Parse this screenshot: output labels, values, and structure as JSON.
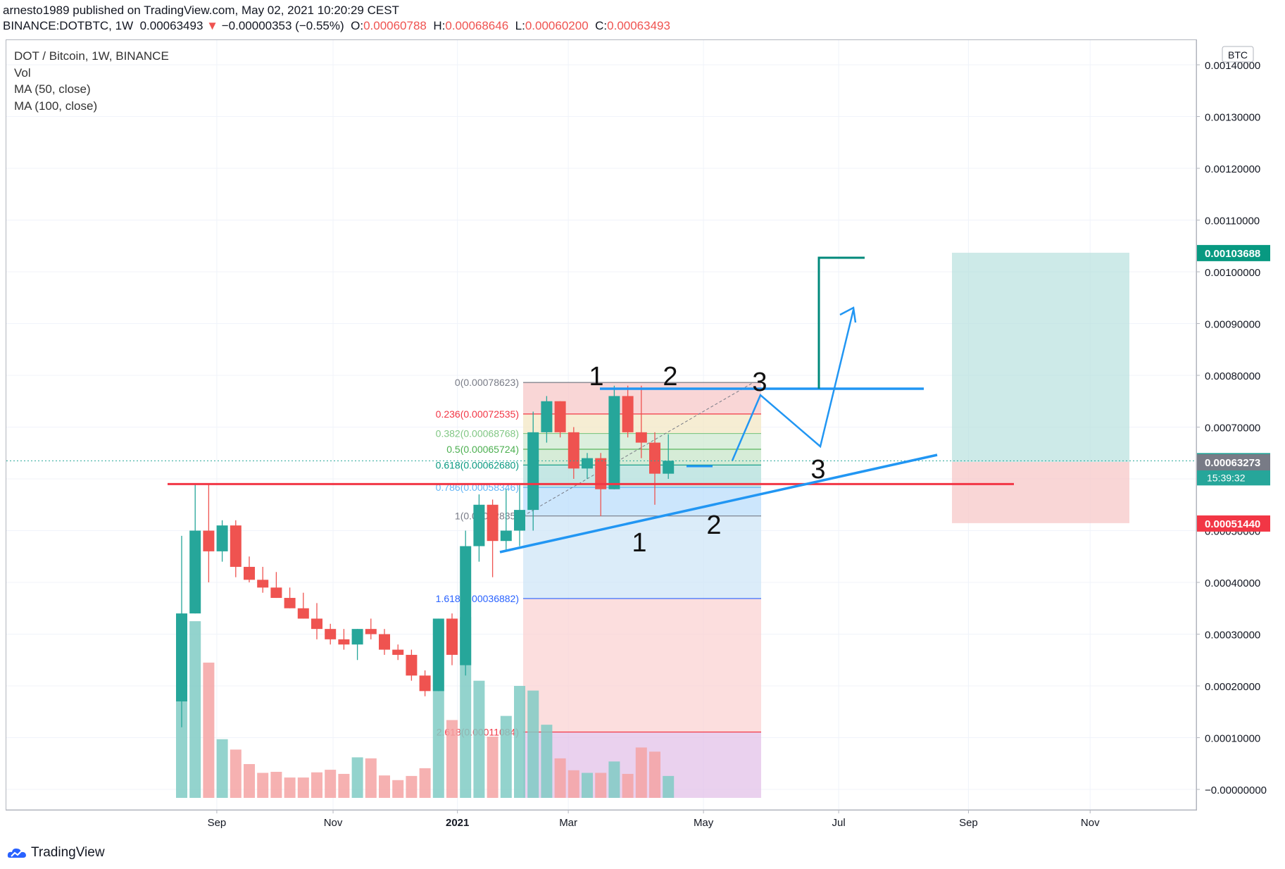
{
  "header": {
    "line1": "arnesto1989 published on TradingView.com, May 02, 2021 10:20:29 CEST",
    "symbol": "BINANCE:DOTBTC, 1W",
    "price": "0.00063493",
    "change": "−0.00000353 (−0.55%)",
    "ohlc": {
      "o_label": "O:",
      "o": "0.00060788",
      "h_label": "H:",
      "h": "0.00068646",
      "l_label": "L:",
      "l": "0.00060200",
      "c_label": "C:",
      "c": "0.00063493"
    }
  },
  "legend": {
    "title": "DOT / Bitcoin, 1W, BINANCE",
    "vol": "Vol",
    "ma50": "MA (50, close)",
    "ma100": "MA (100, close)"
  },
  "currency": "BTC",
  "brand": "TradingView",
  "colors": {
    "up": "#26a69a",
    "down": "#ef5350",
    "drawing_blue": "#2196f3",
    "hline_red": "#f23645",
    "target_teal": "#009688"
  },
  "chart_data": {
    "type": "candlestick",
    "y_axis": {
      "min": -2e-05,
      "max": 0.00143,
      "ticks": [
        0,
        0.0001,
        0.0002,
        0.0003,
        0.0004,
        0.0005,
        0.0006,
        0.0007,
        0.0008,
        0.0009,
        0.001,
        0.0011,
        0.0012,
        0.0013,
        0.0014
      ],
      "tick_labels": [
        "−0.00000000",
        "0.00010000",
        "0.00020000",
        "0.00030000",
        "0.00040000",
        "0.00050000",
        "0.00060000",
        "0.00070000",
        "0.00080000",
        "0.00090000",
        "0.00100000",
        "0.00110000",
        "0.00120000",
        "0.00130000",
        "0.00140000"
      ]
    },
    "x_axis": {
      "labels": [
        "Sep",
        "Nov",
        "2021",
        "Mar",
        "May",
        "Jul",
        "Sep",
        "Nov"
      ],
      "label_weeks": [
        2.6,
        11.2,
        20.4,
        28.6,
        38.6,
        48.6,
        58.2,
        67.2
      ]
    },
    "candles": [
      {
        "o": 0.00017,
        "h": 0.00049,
        "l": 0.00012,
        "c": 0.00034
      },
      {
        "o": 0.00034,
        "h": 0.00059,
        "l": 0.00034,
        "c": 0.0005
      },
      {
        "o": 0.0005,
        "h": 0.00059,
        "l": 0.0004,
        "c": 0.00046
      },
      {
        "o": 0.00046,
        "h": 0.00052,
        "l": 0.00044,
        "c": 0.00051
      },
      {
        "o": 0.00051,
        "h": 0.00052,
        "l": 0.00041,
        "c": 0.00043
      },
      {
        "o": 0.00043,
        "h": 0.00045,
        "l": 0.0004,
        "c": 0.000405
      },
      {
        "o": 0.000405,
        "h": 0.00043,
        "l": 0.00038,
        "c": 0.00039
      },
      {
        "o": 0.00039,
        "h": 0.00042,
        "l": 0.00037,
        "c": 0.00037
      },
      {
        "o": 0.00037,
        "h": 0.00039,
        "l": 0.00035,
        "c": 0.00035
      },
      {
        "o": 0.00035,
        "h": 0.00038,
        "l": 0.00033,
        "c": 0.00033
      },
      {
        "o": 0.00033,
        "h": 0.00036,
        "l": 0.00029,
        "c": 0.00031
      },
      {
        "o": 0.00031,
        "h": 0.00032,
        "l": 0.00028,
        "c": 0.00029
      },
      {
        "o": 0.00029,
        "h": 0.00031,
        "l": 0.00027,
        "c": 0.00028
      },
      {
        "o": 0.00028,
        "h": 0.00031,
        "l": 0.00025,
        "c": 0.00031
      },
      {
        "o": 0.00031,
        "h": 0.00033,
        "l": 0.00029,
        "c": 0.0003
      },
      {
        "o": 0.0003,
        "h": 0.00031,
        "l": 0.00026,
        "c": 0.00027
      },
      {
        "o": 0.00027,
        "h": 0.00028,
        "l": 0.00025,
        "c": 0.00026
      },
      {
        "o": 0.00026,
        "h": 0.00027,
        "l": 0.00021,
        "c": 0.00022
      },
      {
        "o": 0.00022,
        "h": 0.00023,
        "l": 0.00018,
        "c": 0.00019
      },
      {
        "o": 0.00019,
        "h": 0.00033,
        "l": 0.00019,
        "c": 0.00033
      },
      {
        "o": 0.00033,
        "h": 0.00034,
        "l": 0.00024,
        "c": 0.00026
      },
      {
        "o": 0.00024,
        "h": 0.0005,
        "l": 0.00022,
        "c": 0.00047
      },
      {
        "o": 0.00047,
        "h": 0.00057,
        "l": 0.00044,
        "c": 0.00055
      },
      {
        "o": 0.00055,
        "h": 0.00056,
        "l": 0.00041,
        "c": 0.00048
      },
      {
        "o": 0.00048,
        "h": 0.00058,
        "l": 0.00046,
        "c": 0.0005
      },
      {
        "o": 0.0005,
        "h": 0.00059,
        "l": 0.00047,
        "c": 0.00054
      },
      {
        "o": 0.00054,
        "h": 0.00073,
        "l": 0.0005,
        "c": 0.00069
      },
      {
        "o": 0.00069,
        "h": 0.00076,
        "l": 0.00067,
        "c": 0.00075
      },
      {
        "o": 0.00075,
        "h": 0.00075,
        "l": 0.00068,
        "c": 0.00069
      },
      {
        "o": 0.00069,
        "h": 0.0007,
        "l": 0.0006,
        "c": 0.00062
      },
      {
        "o": 0.00062,
        "h": 0.00065,
        "l": 0.0006,
        "c": 0.00064
      },
      {
        "o": 0.00064,
        "h": 0.00065,
        "l": 0.000528,
        "c": 0.00058
      },
      {
        "o": 0.00058,
        "h": 0.00078,
        "l": 0.00058,
        "c": 0.00076
      },
      {
        "o": 0.00076,
        "h": 0.00078,
        "l": 0.00068,
        "c": 0.00069
      },
      {
        "o": 0.00069,
        "h": 0.00078,
        "l": 0.00064,
        "c": 0.00067
      },
      {
        "o": 0.00067,
        "h": 0.00069,
        "l": 0.00055,
        "c": 0.00061
      },
      {
        "o": 0.00061,
        "h": 0.000686,
        "l": 0.0006,
        "c": 0.000635
      }
    ],
    "volumes": [
      {
        "v": 0.00017,
        "up": true
      },
      {
        "v": 0.000325,
        "up": true
      },
      {
        "v": 0.000245,
        "up": false
      },
      {
        "v": 9.7e-05,
        "up": true
      },
      {
        "v": 7.7e-05,
        "up": false
      },
      {
        "v": 4.9e-05,
        "up": false
      },
      {
        "v": 3.2e-05,
        "up": false
      },
      {
        "v": 3.4e-05,
        "up": false
      },
      {
        "v": 2.3e-05,
        "up": false
      },
      {
        "v": 2.3e-05,
        "up": false
      },
      {
        "v": 3.3e-05,
        "up": false
      },
      {
        "v": 3.8e-05,
        "up": false
      },
      {
        "v": 3e-05,
        "up": false
      },
      {
        "v": 6.2e-05,
        "up": true
      },
      {
        "v": 6e-05,
        "up": false
      },
      {
        "v": 2.7e-05,
        "up": false
      },
      {
        "v": 1.8e-05,
        "up": false
      },
      {
        "v": 2.6e-05,
        "up": false
      },
      {
        "v": 4.1e-05,
        "up": false
      },
      {
        "v": 0.000324,
        "up": true
      },
      {
        "v": 0.000134,
        "up": false
      },
      {
        "v": 0.000333,
        "up": true
      },
      {
        "v": 0.00021,
        "up": true
      },
      {
        "v": 0.000102,
        "up": false
      },
      {
        "v": 0.000142,
        "up": true
      },
      {
        "v": 0.0002,
        "up": true
      },
      {
        "v": 0.000191,
        "up": true
      },
      {
        "v": 0.000125,
        "up": true
      },
      {
        "v": 6e-05,
        "up": false
      },
      {
        "v": 3.7e-05,
        "up": false
      },
      {
        "v": 3.2e-05,
        "up": true
      },
      {
        "v": 3.2e-05,
        "up": false
      },
      {
        "v": 5.4e-05,
        "up": true
      },
      {
        "v": 3e-05,
        "up": false
      },
      {
        "v": 8.1e-05,
        "up": false
      },
      {
        "v": 7.3e-05,
        "up": false
      },
      {
        "v": 2.6e-05,
        "up": true
      }
    ],
    "fib_levels": [
      {
        "label": "0(0.00078623)",
        "value": 0.00078623,
        "color": "#787b86"
      },
      {
        "label": "0.236(0.00072535)",
        "value": 0.00072535,
        "color": "#f23645"
      },
      {
        "label": "0.382(0.00068768)",
        "value": 0.00068768,
        "color": "#81c784"
      },
      {
        "label": "0.5(0.00065724)",
        "value": 0.00065724,
        "color": "#4caf50"
      },
      {
        "label": "0.618(0.00062680)",
        "value": 0.0006268,
        "color": "#089981"
      },
      {
        "label": "0.786(0.00058346)",
        "value": 0.00058346,
        "color": "#64b5f6"
      },
      {
        "label": "1(0.00052835)",
        "value": 0.00052835,
        "color": "#787b86"
      },
      {
        "label": "1.618(0.00036882)",
        "value": 0.00036882,
        "color": "#2962ff"
      },
      {
        "label": "2.618(0.00011084)",
        "value": 0.00011084,
        "color": "#f23645"
      }
    ],
    "price_tags": [
      {
        "label": "0.00103688",
        "value": 0.00103688,
        "bg": "#089981"
      },
      {
        "label": "0.00063493",
        "value": 0.00063493,
        "bg": "#26a69a",
        "sub": "15:39:32"
      },
      {
        "label": "0.00063273",
        "value": 0.00063273,
        "bg": "#787b86"
      },
      {
        "label": "0.00051440",
        "value": 0.0005144,
        "bg": "#f23645"
      }
    ],
    "position": {
      "entry": 0.00063273,
      "target": 0.00103688,
      "stop": 0.0005144
    },
    "wave_labels": [
      "1",
      "2",
      "3",
      "3",
      "1",
      "2"
    ],
    "support_level": 0.00059
  }
}
